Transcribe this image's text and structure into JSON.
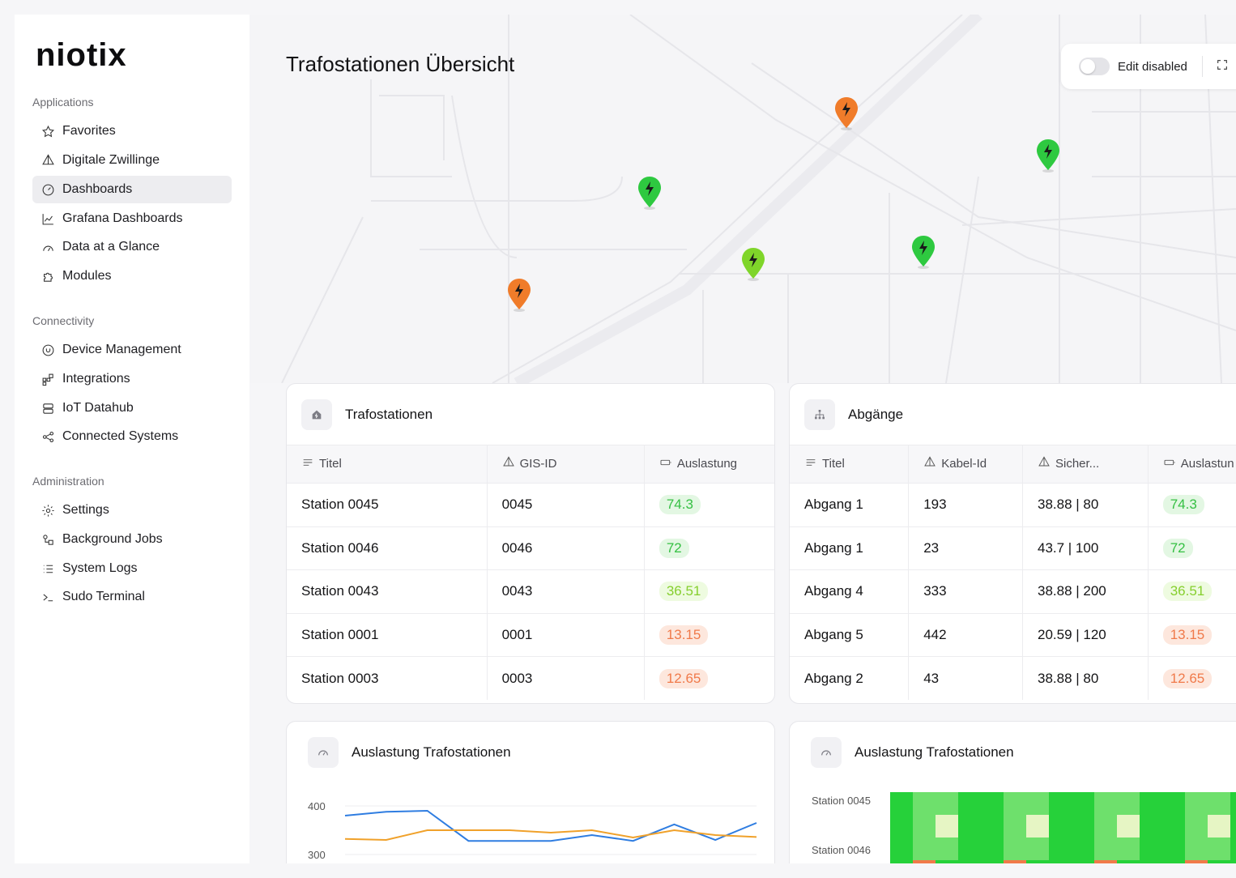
{
  "brand": {
    "logo": "niotix"
  },
  "sidebar": {
    "sections": [
      {
        "label": "Applications"
      },
      {
        "label": "Connectivity"
      },
      {
        "label": "Administration"
      }
    ],
    "items": [
      {
        "label": "Favorites",
        "icon": "star-icon"
      },
      {
        "label": "Digitale Zwillinge",
        "icon": "twin-icon"
      },
      {
        "label": "Dashboards",
        "icon": "dashboard-icon",
        "active": true
      },
      {
        "label": "Grafana Dashboards",
        "icon": "chart-line-icon"
      },
      {
        "label": "Data at a Glance",
        "icon": "gauge-icon"
      },
      {
        "label": "Modules",
        "icon": "puzzle-icon"
      },
      {
        "label": "Device Management",
        "icon": "device-icon"
      },
      {
        "label": "Integrations",
        "icon": "integrations-icon"
      },
      {
        "label": "IoT Datahub",
        "icon": "database-icon"
      },
      {
        "label": "Connected Systems",
        "icon": "share-icon"
      },
      {
        "label": "Settings",
        "icon": "gear-icon"
      },
      {
        "label": "Background Jobs",
        "icon": "jobs-icon"
      },
      {
        "label": "System Logs",
        "icon": "list-icon"
      },
      {
        "label": "Sudo Terminal",
        "icon": "terminal-icon"
      }
    ]
  },
  "header": {
    "title": "Trafostationen Übersicht",
    "edit_toggle_label": "Edit disabled"
  },
  "map": {
    "pins": [
      {
        "status": "high",
        "color": "#f07c2a"
      },
      {
        "status": "ok",
        "color": "#2ec940"
      },
      {
        "status": "medium",
        "color": "#7fd52a"
      },
      {
        "status": "ok",
        "color": "#2ec940"
      },
      {
        "status": "high",
        "color": "#f07c2a"
      },
      {
        "status": "ok",
        "color": "#2ec940"
      }
    ]
  },
  "trafostationen": {
    "title": "Trafostationen",
    "columns": [
      "Titel",
      "GIS-ID",
      "Auslastung"
    ],
    "rows": [
      {
        "titel": "Station 0045",
        "gis": "0045",
        "auslastung": "74.3",
        "level": "green"
      },
      {
        "titel": "Station 0046",
        "gis": "0046",
        "auslastung": "72",
        "level": "green"
      },
      {
        "titel": "Station 0043",
        "gis": "0043",
        "auslastung": "36.51",
        "level": "lime"
      },
      {
        "titel": "Station 0001",
        "gis": "0001",
        "auslastung": "13.15",
        "level": "orange"
      },
      {
        "titel": "Station 0003",
        "gis": "0003",
        "auslastung": "12.65",
        "level": "orange"
      }
    ]
  },
  "abgaenge": {
    "title": "Abgänge",
    "columns": [
      "Titel",
      "Kabel-Id",
      "Sicher...",
      "Auslastun"
    ],
    "rows": [
      {
        "titel": "Abgang 1",
        "kabel": "193",
        "sicher": "38.88 | 80",
        "auslastung": "74.3",
        "level": "green"
      },
      {
        "titel": "Abgang 1",
        "kabel": "23",
        "sicher": "43.7 | 100",
        "auslastung": "72",
        "level": "green"
      },
      {
        "titel": "Abgang 4",
        "kabel": "333",
        "sicher": "38.88 | 200",
        "auslastung": "36.51",
        "level": "lime"
      },
      {
        "titel": "Abgang 5",
        "kabel": "442",
        "sicher": "20.59 | 120",
        "auslastung": "13.15",
        "level": "orange"
      },
      {
        "titel": "Abgang 2",
        "kabel": "43",
        "sicher": "38.88 | 80",
        "auslastung": "12.65",
        "level": "orange"
      }
    ]
  },
  "badge_colors": {
    "green": {
      "bg": "#e3f7e3",
      "fg": "#35c043"
    },
    "lime": {
      "bg": "#eefbe0",
      "fg": "#86cf2e"
    },
    "orange": {
      "bg": "#fde7dd",
      "fg": "#f07a4a"
    }
  },
  "line_chart_card": {
    "title": "Auslastung Trafostationen"
  },
  "heatmap_card": {
    "title": "Auslastung Trafostationen",
    "row_labels": [
      "Station 0045",
      "Station 0046"
    ]
  },
  "chart_data": [
    {
      "type": "line",
      "title": "Auslastung Trafostationen",
      "y_ticks": [
        "400",
        "300"
      ],
      "ylim": [
        300,
        400
      ],
      "series": [
        {
          "color": "#2f7de1",
          "values": [
            380,
            388,
            390,
            328,
            328,
            328,
            340,
            328,
            362,
            330,
            365
          ]
        },
        {
          "color": "#f0a12a",
          "values": [
            332,
            330,
            350,
            350,
            350,
            345,
            350,
            335,
            350,
            340,
            336
          ]
        }
      ]
    },
    {
      "type": "heatmap",
      "title": "Auslastung Trafostationen",
      "rows": [
        "Station 0045",
        "Station 0046"
      ]
    }
  ]
}
